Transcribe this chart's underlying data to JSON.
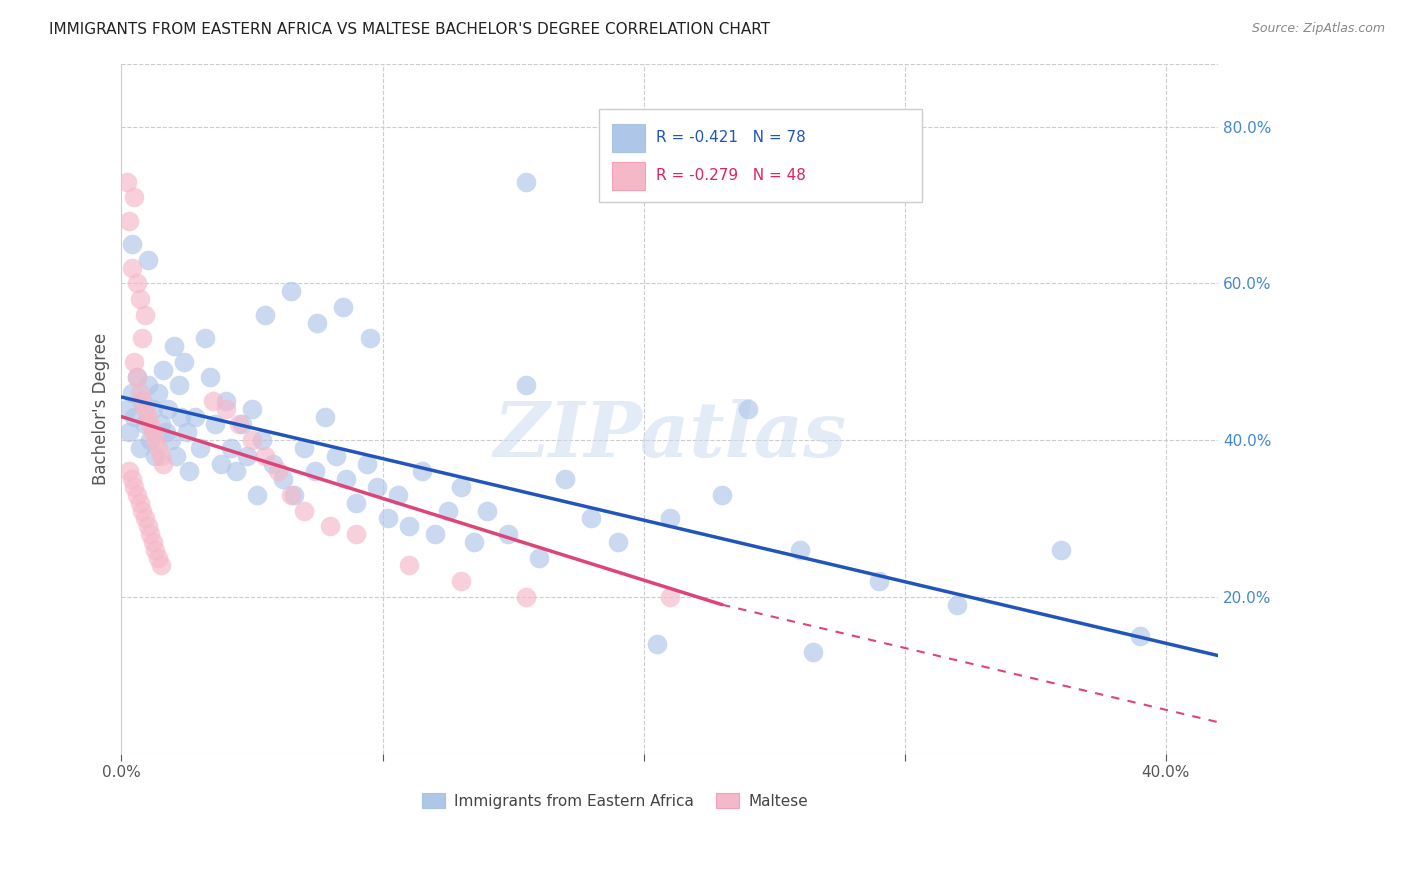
{
  "title": "IMMIGRANTS FROM EASTERN AFRICA VS MALTESE BACHELOR'S DEGREE CORRELATION CHART",
  "source": "Source: ZipAtlas.com",
  "ylabel": "Bachelor's Degree",
  "xlim": [
    0.0,
    0.42
  ],
  "ylim": [
    0.0,
    0.88
  ],
  "x_tick_positions": [
    0.0,
    0.1,
    0.2,
    0.3,
    0.4
  ],
  "x_tick_labels": [
    "0.0%",
    "",
    "",
    "",
    "40.0%"
  ],
  "y_ticks_right": [
    0.2,
    0.4,
    0.6,
    0.8
  ],
  "y_tick_labels_right": [
    "20.0%",
    "40.0%",
    "60.0%",
    "80.0%"
  ],
  "legend_label1": "Immigrants from Eastern Africa",
  "legend_label2": "Maltese",
  "blue_color": "#aec6e8",
  "pink_color": "#f5b8c8",
  "blue_line_color": "#2255bb",
  "pink_line_color": "#dd4477",
  "watermark": "ZIPatlas",
  "blue_scatter": [
    [
      0.002,
      0.44
    ],
    [
      0.003,
      0.41
    ],
    [
      0.004,
      0.46
    ],
    [
      0.005,
      0.43
    ],
    [
      0.006,
      0.48
    ],
    [
      0.007,
      0.39
    ],
    [
      0.008,
      0.45
    ],
    [
      0.009,
      0.42
    ],
    [
      0.01,
      0.47
    ],
    [
      0.011,
      0.4
    ],
    [
      0.012,
      0.44
    ],
    [
      0.013,
      0.38
    ],
    [
      0.014,
      0.46
    ],
    [
      0.015,
      0.42
    ],
    [
      0.016,
      0.49
    ],
    [
      0.017,
      0.41
    ],
    [
      0.018,
      0.44
    ],
    [
      0.019,
      0.4
    ],
    [
      0.02,
      0.52
    ],
    [
      0.021,
      0.38
    ],
    [
      0.022,
      0.47
    ],
    [
      0.023,
      0.43
    ],
    [
      0.024,
      0.5
    ],
    [
      0.025,
      0.41
    ],
    [
      0.026,
      0.36
    ],
    [
      0.028,
      0.43
    ],
    [
      0.03,
      0.39
    ],
    [
      0.032,
      0.53
    ],
    [
      0.034,
      0.48
    ],
    [
      0.036,
      0.42
    ],
    [
      0.038,
      0.37
    ],
    [
      0.04,
      0.45
    ],
    [
      0.042,
      0.39
    ],
    [
      0.044,
      0.36
    ],
    [
      0.046,
      0.42
    ],
    [
      0.048,
      0.38
    ],
    [
      0.05,
      0.44
    ],
    [
      0.052,
      0.33
    ],
    [
      0.054,
      0.4
    ],
    [
      0.058,
      0.37
    ],
    [
      0.062,
      0.35
    ],
    [
      0.066,
      0.33
    ],
    [
      0.07,
      0.39
    ],
    [
      0.074,
      0.36
    ],
    [
      0.078,
      0.43
    ],
    [
      0.082,
      0.38
    ],
    [
      0.086,
      0.35
    ],
    [
      0.09,
      0.32
    ],
    [
      0.094,
      0.37
    ],
    [
      0.098,
      0.34
    ],
    [
      0.102,
      0.3
    ],
    [
      0.106,
      0.33
    ],
    [
      0.11,
      0.29
    ],
    [
      0.115,
      0.36
    ],
    [
      0.12,
      0.28
    ],
    [
      0.125,
      0.31
    ],
    [
      0.13,
      0.34
    ],
    [
      0.135,
      0.27
    ],
    [
      0.14,
      0.31
    ],
    [
      0.148,
      0.28
    ],
    [
      0.16,
      0.25
    ],
    [
      0.17,
      0.35
    ],
    [
      0.18,
      0.3
    ],
    [
      0.19,
      0.27
    ],
    [
      0.004,
      0.65
    ],
    [
      0.01,
      0.63
    ],
    [
      0.055,
      0.56
    ],
    [
      0.065,
      0.59
    ],
    [
      0.075,
      0.55
    ],
    [
      0.085,
      0.57
    ],
    [
      0.095,
      0.53
    ],
    [
      0.155,
      0.47
    ],
    [
      0.24,
      0.44
    ],
    [
      0.21,
      0.3
    ],
    [
      0.23,
      0.33
    ],
    [
      0.26,
      0.26
    ],
    [
      0.29,
      0.22
    ],
    [
      0.32,
      0.19
    ],
    [
      0.36,
      0.26
    ],
    [
      0.39,
      0.15
    ],
    [
      0.205,
      0.14
    ],
    [
      0.265,
      0.13
    ],
    [
      0.155,
      0.73
    ]
  ],
  "pink_scatter": [
    [
      0.002,
      0.73
    ],
    [
      0.005,
      0.71
    ],
    [
      0.003,
      0.68
    ],
    [
      0.008,
      0.53
    ],
    [
      0.004,
      0.62
    ],
    [
      0.006,
      0.6
    ],
    [
      0.007,
      0.58
    ],
    [
      0.009,
      0.56
    ],
    [
      0.005,
      0.5
    ],
    [
      0.006,
      0.48
    ],
    [
      0.007,
      0.46
    ],
    [
      0.008,
      0.45
    ],
    [
      0.009,
      0.44
    ],
    [
      0.01,
      0.43
    ],
    [
      0.011,
      0.42
    ],
    [
      0.012,
      0.41
    ],
    [
      0.013,
      0.4
    ],
    [
      0.014,
      0.39
    ],
    [
      0.015,
      0.38
    ],
    [
      0.016,
      0.37
    ],
    [
      0.003,
      0.36
    ],
    [
      0.004,
      0.35
    ],
    [
      0.005,
      0.34
    ],
    [
      0.006,
      0.33
    ],
    [
      0.007,
      0.32
    ],
    [
      0.008,
      0.31
    ],
    [
      0.009,
      0.3
    ],
    [
      0.01,
      0.29
    ],
    [
      0.011,
      0.28
    ],
    [
      0.012,
      0.27
    ],
    [
      0.013,
      0.26
    ],
    [
      0.014,
      0.25
    ],
    [
      0.015,
      0.24
    ],
    [
      0.035,
      0.45
    ],
    [
      0.04,
      0.44
    ],
    [
      0.045,
      0.42
    ],
    [
      0.05,
      0.4
    ],
    [
      0.055,
      0.38
    ],
    [
      0.06,
      0.36
    ],
    [
      0.065,
      0.33
    ],
    [
      0.07,
      0.31
    ],
    [
      0.08,
      0.29
    ],
    [
      0.09,
      0.28
    ],
    [
      0.11,
      0.24
    ],
    [
      0.13,
      0.22
    ],
    [
      0.155,
      0.2
    ],
    [
      0.21,
      0.2
    ]
  ],
  "blue_line": {
    "x0": 0.0,
    "y0": 0.455,
    "x1": 0.42,
    "y1": 0.125
  },
  "pink_line_solid": {
    "x0": 0.0,
    "y0": 0.43,
    "x1": 0.23,
    "y1": 0.19
  },
  "pink_line_dashed": {
    "x0": 0.23,
    "y0": 0.19,
    "x1": 0.42,
    "y1": 0.04
  }
}
